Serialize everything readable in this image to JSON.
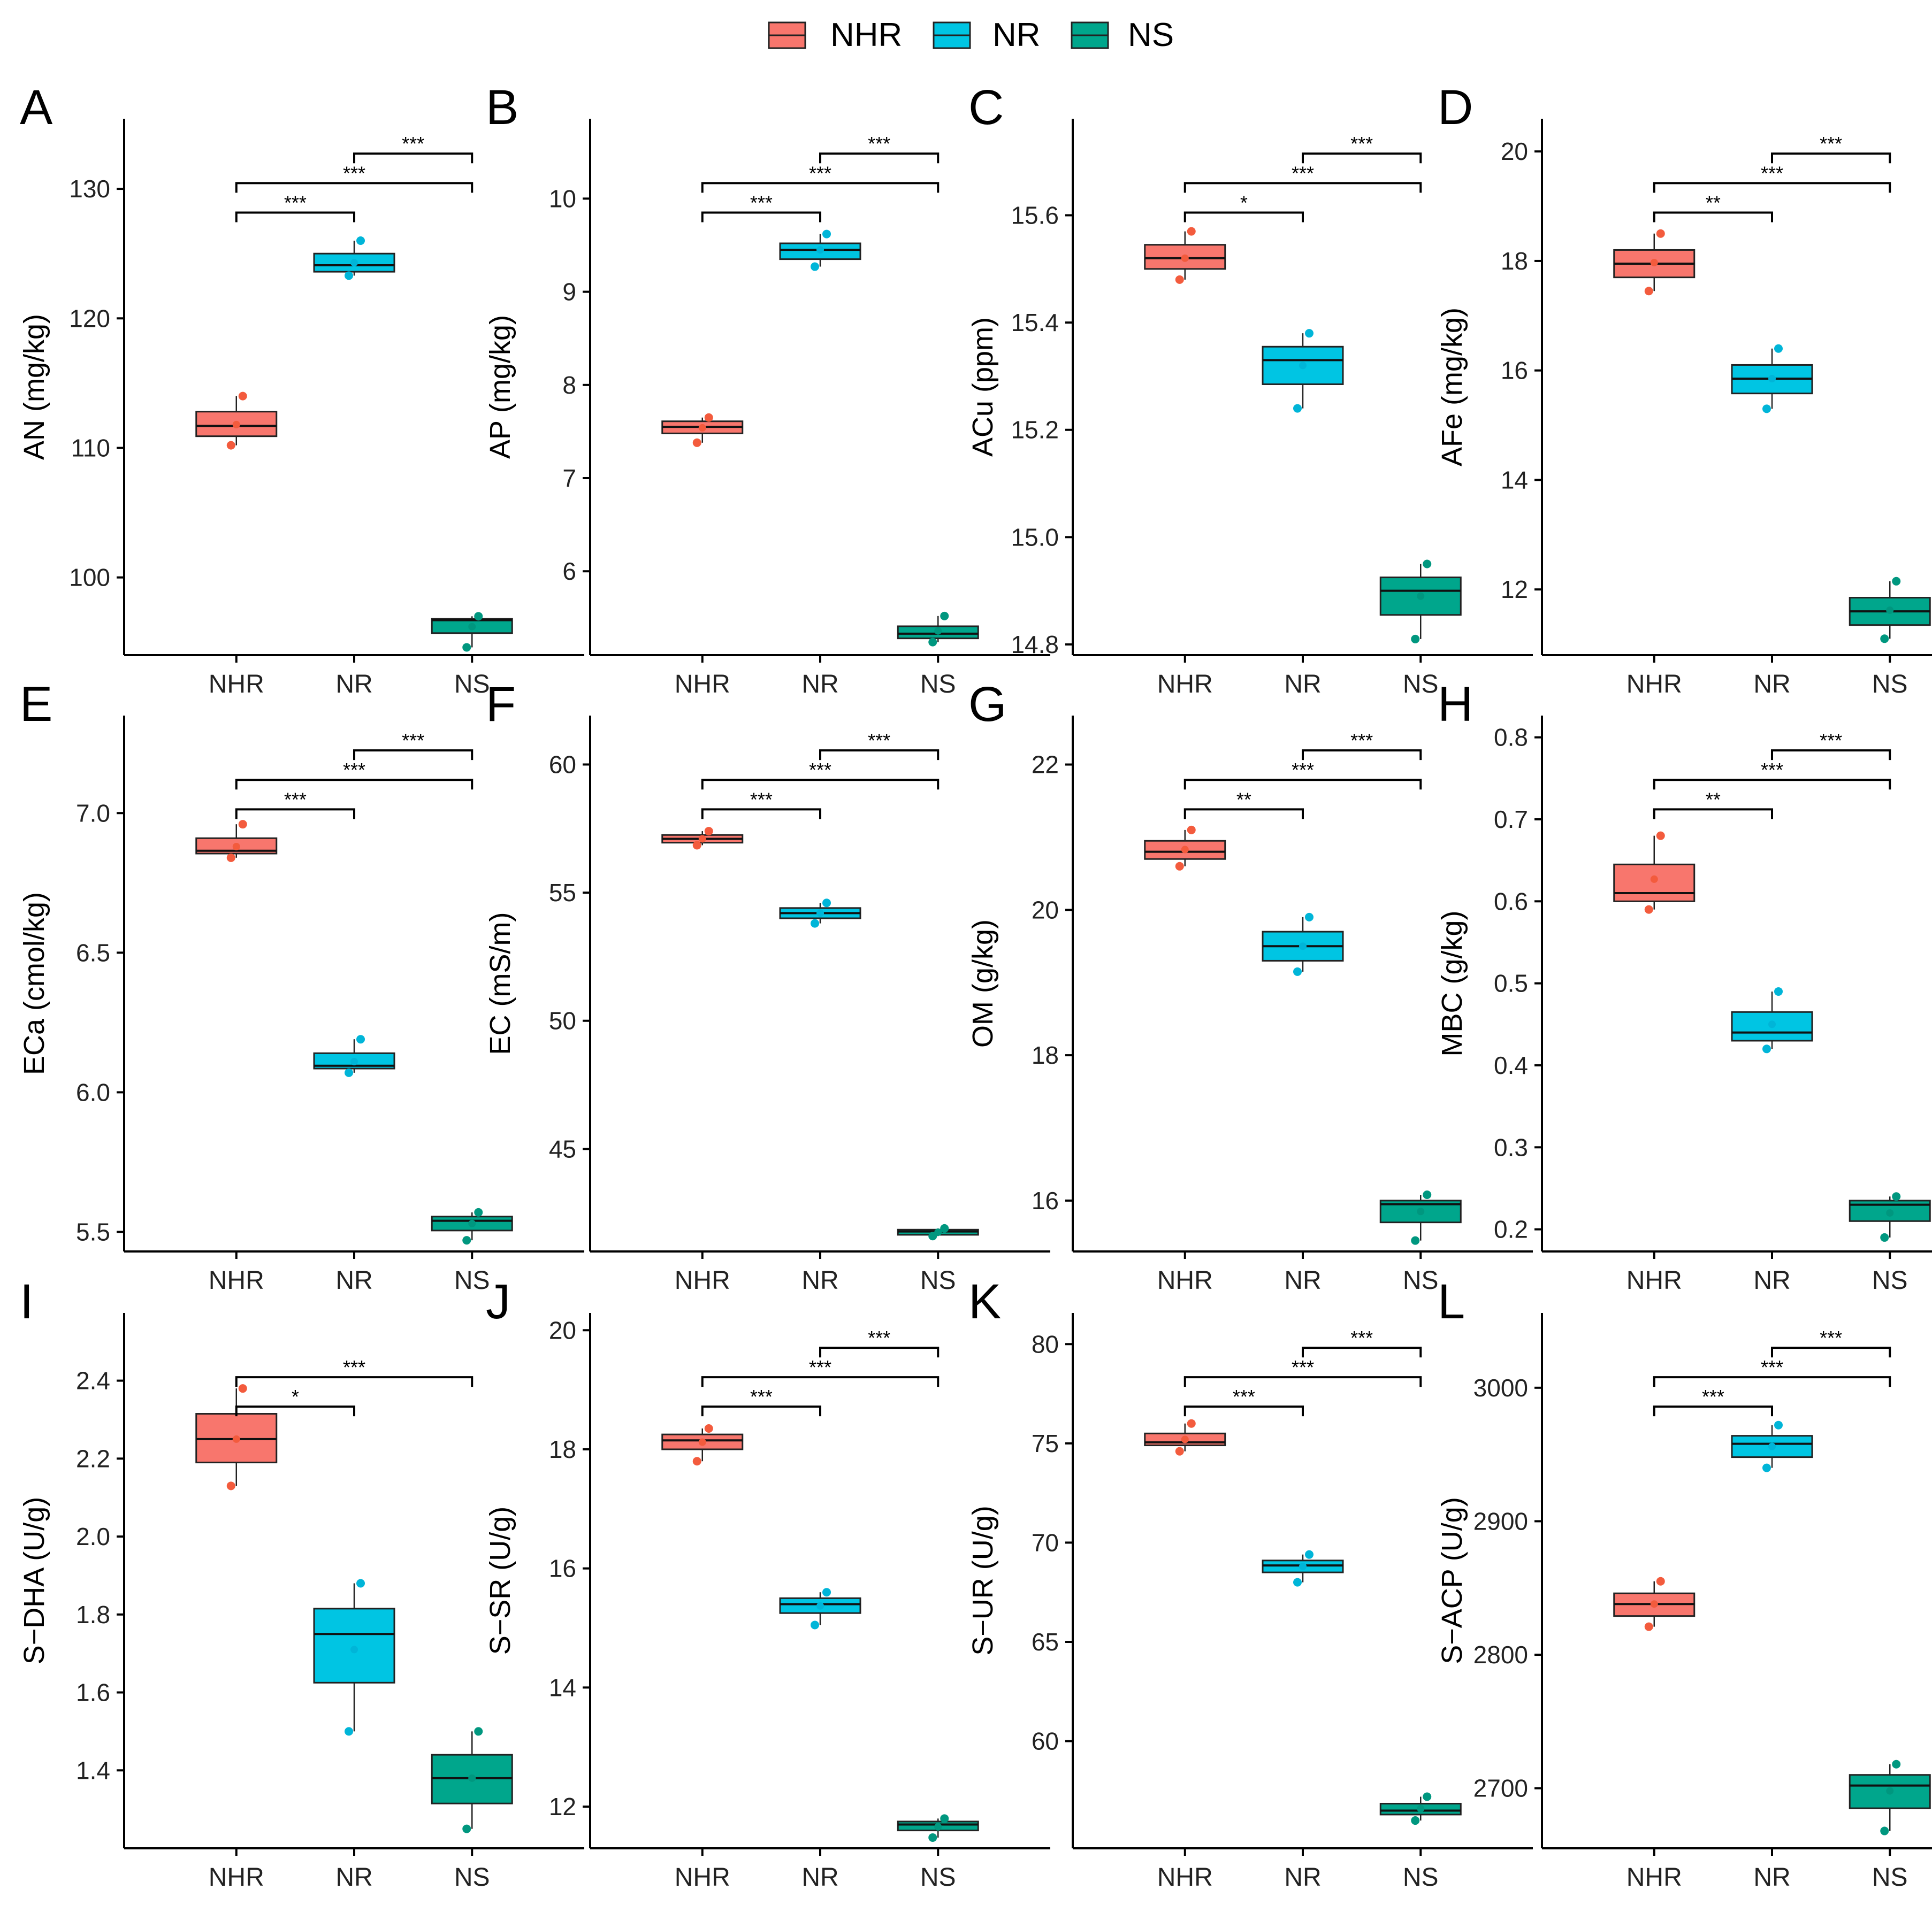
{
  "colors": {
    "NHR": "#F8766D",
    "NR": "#00C5E3",
    "NS": "#00A68C",
    "NHR_point": "#F35B3D",
    "NR_point": "#00B5D8",
    "NS_point": "#00977F"
  },
  "legend": {
    "items": [
      {
        "key": "NHR",
        "label": "NHR"
      },
      {
        "key": "NR",
        "label": "NR"
      },
      {
        "key": "NS",
        "label": "NS"
      }
    ]
  },
  "chart_data": [
    {
      "type": "box",
      "panel": "A",
      "ylabel": "AN (mg/kg)",
      "categories": [
        "NHR",
        "NR",
        "NS"
      ],
      "yticks": [
        100,
        110,
        120,
        130
      ],
      "ylim": [
        94,
        135
      ],
      "boxes": [
        {
          "group": "NHR",
          "q1": 110.9,
          "median": 111.7,
          "q3": 112.8,
          "min": 110.2,
          "max": 114.0,
          "mean": 111.8,
          "points": [
            110.2,
            114.0
          ]
        },
        {
          "group": "NR",
          "q1": 123.6,
          "median": 124.1,
          "q3": 125.0,
          "min": 123.3,
          "max": 126.0,
          "mean": 124.3,
          "points": [
            123.3,
            126.0
          ]
        },
        {
          "group": "NS",
          "q1": 95.7,
          "median": 96.7,
          "q3": 96.8,
          "min": 94.6,
          "max": 97.0,
          "mean": 96.2,
          "points": [
            94.6,
            97.0
          ]
        }
      ],
      "significance": [
        {
          "from": "NHR",
          "to": "NR",
          "label": "***",
          "level": 0
        },
        {
          "from": "NHR",
          "to": "NS",
          "label": "***",
          "level": 1
        },
        {
          "from": "NR",
          "to": "NS",
          "label": "***",
          "level": 2
        }
      ]
    },
    {
      "type": "box",
      "panel": "B",
      "ylabel": "AP (mg/kg)",
      "categories": [
        "NHR",
        "NR",
        "NS"
      ],
      "yticks": [
        6,
        7,
        8,
        9,
        10
      ],
      "ylim": [
        5.1,
        10.8
      ],
      "boxes": [
        {
          "group": "NHR",
          "q1": 7.48,
          "median": 7.55,
          "q3": 7.61,
          "min": 7.38,
          "max": 7.65,
          "mean": 7.54,
          "points": [
            7.38,
            7.65
          ]
        },
        {
          "group": "NR",
          "q1": 9.35,
          "median": 9.45,
          "q3": 9.52,
          "min": 9.27,
          "max": 9.62,
          "mean": 9.45,
          "points": [
            9.27,
            9.62
          ]
        },
        {
          "group": "NS",
          "q1": 5.28,
          "median": 5.33,
          "q3": 5.41,
          "min": 5.24,
          "max": 5.52,
          "mean": 5.36,
          "points": [
            5.24,
            5.52
          ]
        }
      ],
      "significance": [
        {
          "from": "NHR",
          "to": "NR",
          "label": "***",
          "level": 0
        },
        {
          "from": "NHR",
          "to": "NS",
          "label": "***",
          "level": 1
        },
        {
          "from": "NR",
          "to": "NS",
          "label": "***",
          "level": 2
        }
      ]
    },
    {
      "type": "box",
      "panel": "C",
      "ylabel": "ACu (ppm)",
      "categories": [
        "NHR",
        "NR",
        "NS"
      ],
      "yticks": [
        14.8,
        15.0,
        15.2,
        15.4,
        15.6
      ],
      "ylim": [
        14.78,
        15.77
      ],
      "decimals": 1,
      "boxes": [
        {
          "group": "NHR",
          "q1": 15.5,
          "median": 15.52,
          "q3": 15.545,
          "min": 15.48,
          "max": 15.57,
          "mean": 15.52,
          "points": [
            15.48,
            15.57
          ]
        },
        {
          "group": "NR",
          "q1": 15.285,
          "median": 15.33,
          "q3": 15.355,
          "min": 15.24,
          "max": 15.38,
          "mean": 15.32,
          "points": [
            15.24,
            15.38
          ]
        },
        {
          "group": "NS",
          "q1": 14.855,
          "median": 14.9,
          "q3": 14.925,
          "min": 14.81,
          "max": 14.95,
          "mean": 14.89,
          "points": [
            14.81,
            14.95
          ]
        }
      ],
      "significance": [
        {
          "from": "NHR",
          "to": "NR",
          "label": "*",
          "level": 0
        },
        {
          "from": "NHR",
          "to": "NS",
          "label": "***",
          "level": 1
        },
        {
          "from": "NR",
          "to": "NS",
          "label": "***",
          "level": 2
        }
      ]
    },
    {
      "type": "box",
      "panel": "D",
      "ylabel": "AFe (mg/kg)",
      "categories": [
        "NHR",
        "NR",
        "NS"
      ],
      "yticks": [
        12,
        14,
        16,
        18,
        20
      ],
      "ylim": [
        10.8,
        20.5
      ],
      "boxes": [
        {
          "group": "NHR",
          "q1": 17.7,
          "median": 17.95,
          "q3": 18.2,
          "min": 17.45,
          "max": 18.5,
          "mean": 17.97,
          "points": [
            17.45,
            18.5
          ]
        },
        {
          "group": "NR",
          "q1": 15.58,
          "median": 15.85,
          "q3": 16.1,
          "min": 15.3,
          "max": 16.4,
          "mean": 15.85,
          "points": [
            15.3,
            16.4
          ]
        },
        {
          "group": "NS",
          "q1": 11.35,
          "median": 11.6,
          "q3": 11.85,
          "min": 11.1,
          "max": 12.15,
          "mean": 11.62,
          "points": [
            11.1,
            12.15
          ]
        }
      ],
      "significance": [
        {
          "from": "NHR",
          "to": "NR",
          "label": "**",
          "level": 0
        },
        {
          "from": "NHR",
          "to": "NS",
          "label": "***",
          "level": 1
        },
        {
          "from": "NR",
          "to": "NS",
          "label": "***",
          "level": 2
        }
      ]
    },
    {
      "type": "box",
      "panel": "E",
      "ylabel": "ECa (cmol/kg)",
      "categories": [
        "NHR",
        "NR",
        "NS"
      ],
      "yticks": [
        5.5,
        6.0,
        6.5,
        7.0
      ],
      "ylim": [
        5.43,
        7.33
      ],
      "decimals": 1,
      "boxes": [
        {
          "group": "NHR",
          "q1": 6.855,
          "median": 6.865,
          "q3": 6.91,
          "min": 6.84,
          "max": 6.96,
          "mean": 6.88,
          "points": [
            6.84,
            6.96
          ]
        },
        {
          "group": "NR",
          "q1": 6.085,
          "median": 6.095,
          "q3": 6.14,
          "min": 6.07,
          "max": 6.19,
          "mean": 6.11,
          "points": [
            6.07,
            6.19
          ]
        },
        {
          "group": "NS",
          "q1": 5.505,
          "median": 5.54,
          "q3": 5.555,
          "min": 5.47,
          "max": 5.57,
          "mean": 5.53,
          "points": [
            5.47,
            5.57
          ]
        }
      ],
      "significance": [
        {
          "from": "NHR",
          "to": "NR",
          "label": "***",
          "level": 0
        },
        {
          "from": "NHR",
          "to": "NS",
          "label": "***",
          "level": 1
        },
        {
          "from": "NR",
          "to": "NS",
          "label": "***",
          "level": 2
        }
      ]
    },
    {
      "type": "box",
      "panel": "F",
      "ylabel": "EC (mS/m)",
      "categories": [
        "NHR",
        "NR",
        "NS"
      ],
      "yticks": [
        45,
        50,
        55,
        60
      ],
      "ylim": [
        41,
        61.7
      ],
      "boxes": [
        {
          "group": "NHR",
          "q1": 56.95,
          "median": 57.1,
          "q3": 57.25,
          "min": 56.85,
          "max": 57.4,
          "mean": 57.1,
          "points": [
            56.85,
            57.4
          ]
        },
        {
          "group": "NR",
          "q1": 54.0,
          "median": 54.2,
          "q3": 54.4,
          "min": 53.8,
          "max": 54.6,
          "mean": 54.2,
          "points": [
            53.8,
            54.6
          ]
        },
        {
          "group": "NS",
          "q1": 41.65,
          "median": 41.78,
          "q3": 41.85,
          "min": 41.6,
          "max": 41.9,
          "mean": 41.75,
          "points": [
            41.6,
            41.9
          ]
        }
      ],
      "significance": [
        {
          "from": "NHR",
          "to": "NR",
          "label": "***",
          "level": 0
        },
        {
          "from": "NHR",
          "to": "NS",
          "label": "***",
          "level": 1
        },
        {
          "from": "NR",
          "to": "NS",
          "label": "***",
          "level": 2
        }
      ]
    },
    {
      "type": "box",
      "panel": "G",
      "ylabel": "OM (g/kg)",
      "categories": [
        "NHR",
        "NR",
        "NS"
      ],
      "yticks": [
        16,
        18,
        20,
        22
      ],
      "ylim": [
        15.3,
        22.6
      ],
      "boxes": [
        {
          "group": "NHR",
          "q1": 20.7,
          "median": 20.8,
          "q3": 20.95,
          "min": 20.6,
          "max": 21.1,
          "mean": 20.83,
          "points": [
            20.6,
            21.1
          ]
        },
        {
          "group": "NR",
          "q1": 19.3,
          "median": 19.5,
          "q3": 19.7,
          "min": 19.15,
          "max": 19.9,
          "mean": 19.5,
          "points": [
            19.15,
            19.9
          ]
        },
        {
          "group": "NS",
          "q1": 15.7,
          "median": 15.95,
          "q3": 16.0,
          "min": 15.45,
          "max": 16.08,
          "mean": 15.85,
          "points": [
            15.45,
            16.08
          ]
        }
      ],
      "significance": [
        {
          "from": "NHR",
          "to": "NR",
          "label": "**",
          "level": 0
        },
        {
          "from": "NHR",
          "to": "NS",
          "label": "***",
          "level": 1
        },
        {
          "from": "NR",
          "to": "NS",
          "label": "***",
          "level": 2
        }
      ]
    },
    {
      "type": "box",
      "panel": "H",
      "ylabel": "MBC (g/kg)",
      "categories": [
        "NHR",
        "NR",
        "NS"
      ],
      "yticks": [
        0.2,
        0.3,
        0.4,
        0.5,
        0.6,
        0.7,
        0.8
      ],
      "ylim": [
        0.173,
        0.82
      ],
      "decimals": 1,
      "boxes": [
        {
          "group": "NHR",
          "q1": 0.6,
          "median": 0.61,
          "q3": 0.645,
          "min": 0.59,
          "max": 0.68,
          "mean": 0.627,
          "points": [
            0.59,
            0.68
          ]
        },
        {
          "group": "NR",
          "q1": 0.43,
          "median": 0.44,
          "q3": 0.465,
          "min": 0.42,
          "max": 0.49,
          "mean": 0.45,
          "points": [
            0.42,
            0.49
          ]
        },
        {
          "group": "NS",
          "q1": 0.21,
          "median": 0.23,
          "q3": 0.235,
          "min": 0.19,
          "max": 0.24,
          "mean": 0.22,
          "points": [
            0.19,
            0.24
          ]
        }
      ],
      "significance": [
        {
          "from": "NHR",
          "to": "NR",
          "label": "**",
          "level": 0
        },
        {
          "from": "NHR",
          "to": "NS",
          "label": "***",
          "level": 1
        },
        {
          "from": "NR",
          "to": "NS",
          "label": "***",
          "level": 2
        }
      ]
    },
    {
      "type": "box",
      "panel": "I",
      "ylabel": "S−DHA (U/g)",
      "categories": [
        "NHR",
        "NR",
        "NS"
      ],
      "yticks": [
        1.4,
        1.6,
        1.8,
        2.0,
        2.2,
        2.4
      ],
      "ylim": [
        1.2,
        2.56
      ],
      "decimals": 1,
      "boxes": [
        {
          "group": "NHR",
          "q1": 2.19,
          "median": 2.25,
          "q3": 2.315,
          "min": 2.13,
          "max": 2.38,
          "mean": 2.25,
          "points": [
            2.13,
            2.38
          ]
        },
        {
          "group": "NR",
          "q1": 1.625,
          "median": 1.75,
          "q3": 1.815,
          "min": 1.5,
          "max": 1.88,
          "mean": 1.71,
          "points": [
            1.5,
            1.88
          ]
        },
        {
          "group": "NS",
          "q1": 1.315,
          "median": 1.38,
          "q3": 1.44,
          "min": 1.25,
          "max": 1.5,
          "mean": 1.38,
          "points": [
            1.25,
            1.5
          ]
        }
      ],
      "significance": [
        {
          "from": "NHR",
          "to": "NR",
          "label": "*",
          "level": 0
        },
        {
          "from": "NHR",
          "to": "NS",
          "label": "***",
          "level": 1
        }
      ]
    },
    {
      "type": "box",
      "panel": "J",
      "ylabel": "S−SR (U/g)",
      "categories": [
        "NHR",
        "NR",
        "NS"
      ],
      "yticks": [
        12,
        14,
        16,
        18,
        20
      ],
      "ylim": [
        11.3,
        20.2
      ],
      "boxes": [
        {
          "group": "NHR",
          "q1": 18.0,
          "median": 18.15,
          "q3": 18.25,
          "min": 17.8,
          "max": 18.35,
          "mean": 18.12,
          "points": [
            17.8,
            18.35
          ]
        },
        {
          "group": "NR",
          "q1": 15.25,
          "median": 15.4,
          "q3": 15.5,
          "min": 15.05,
          "max": 15.6,
          "mean": 15.37,
          "points": [
            15.05,
            15.6
          ]
        },
        {
          "group": "NS",
          "q1": 11.6,
          "median": 11.7,
          "q3": 11.75,
          "min": 11.48,
          "max": 11.8,
          "mean": 11.66,
          "points": [
            11.48,
            11.8
          ]
        }
      ],
      "significance": [
        {
          "from": "NHR",
          "to": "NR",
          "label": "***",
          "level": 0
        },
        {
          "from": "NHR",
          "to": "NS",
          "label": "***",
          "level": 1
        },
        {
          "from": "NR",
          "to": "NS",
          "label": "***",
          "level": 2
        }
      ]
    },
    {
      "type": "box",
      "panel": "K",
      "ylabel": "S−UR (U/g)",
      "categories": [
        "NHR",
        "NR",
        "NS"
      ],
      "yticks": [
        60,
        65,
        70,
        75,
        80
      ],
      "ylim": [
        54.6,
        81.3
      ],
      "boxes": [
        {
          "group": "NHR",
          "q1": 74.9,
          "median": 75.05,
          "q3": 75.5,
          "min": 74.6,
          "max": 76.0,
          "mean": 75.2,
          "points": [
            74.6,
            76.0
          ]
        },
        {
          "group": "NR",
          "q1": 68.5,
          "median": 68.85,
          "q3": 69.1,
          "min": 68.0,
          "max": 69.4,
          "mean": 68.8,
          "points": [
            68.0,
            69.4
          ]
        },
        {
          "group": "NS",
          "q1": 56.3,
          "median": 56.5,
          "q3": 56.85,
          "min": 56.0,
          "max": 57.2,
          "mean": 56.6,
          "points": [
            56.0,
            57.2
          ]
        }
      ],
      "significance": [
        {
          "from": "NHR",
          "to": "NR",
          "label": "***",
          "level": 0
        },
        {
          "from": "NHR",
          "to": "NS",
          "label": "***",
          "level": 1
        },
        {
          "from": "NR",
          "to": "NS",
          "label": "***",
          "level": 2
        }
      ]
    },
    {
      "type": "box",
      "panel": "L",
      "ylabel": "S−ACP (U/g)",
      "categories": [
        "NHR",
        "NR",
        "NS"
      ],
      "yticks": [
        2700,
        2800,
        2900,
        3000
      ],
      "ylim": [
        2655,
        3052
      ],
      "boxes": [
        {
          "group": "NHR",
          "q1": 2829,
          "median": 2838,
          "q3": 2846,
          "min": 2821,
          "max": 2855,
          "mean": 2838,
          "points": [
            2821,
            2855
          ]
        },
        {
          "group": "NR",
          "q1": 2948,
          "median": 2958,
          "q3": 2964,
          "min": 2940,
          "max": 2972,
          "mean": 2956,
          "points": [
            2940,
            2972
          ]
        },
        {
          "group": "NS",
          "q1": 2685,
          "median": 2702,
          "q3": 2710,
          "min": 2668,
          "max": 2718,
          "mean": 2698,
          "points": [
            2668,
            2718
          ]
        }
      ],
      "significance": [
        {
          "from": "NHR",
          "to": "NR",
          "label": "***",
          "level": 0
        },
        {
          "from": "NHR",
          "to": "NS",
          "label": "***",
          "level": 1
        },
        {
          "from": "NR",
          "to": "NS",
          "label": "***",
          "level": 2
        }
      ]
    }
  ]
}
